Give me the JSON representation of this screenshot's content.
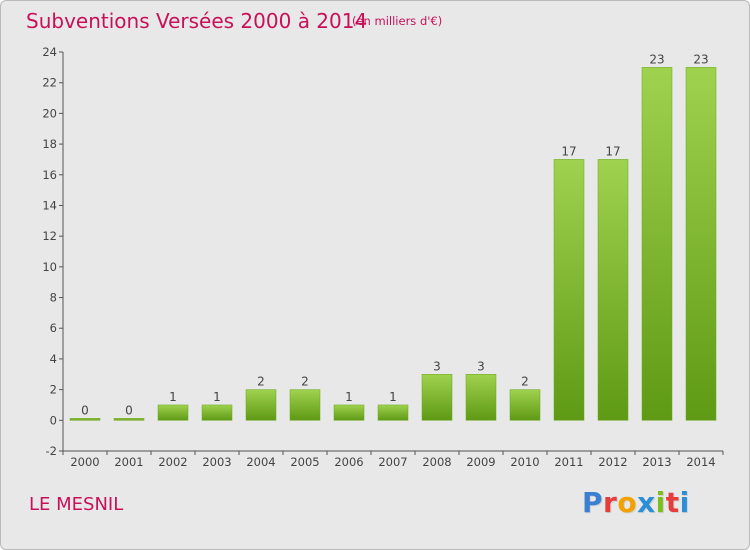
{
  "title": "Subventions Versées 2000 à 2014",
  "subtitle": "(en milliers d'€)",
  "commune": "LE MESNIL",
  "logo": {
    "letters": [
      "P",
      "r",
      "o",
      "x",
      "i",
      "t",
      "i"
    ],
    "colors": [
      "#3b7fd1",
      "#e53c3c",
      "#f2a100",
      "#2a8fd6",
      "#7bbf1e",
      "#e53c3c",
      "#2a8fd6"
    ]
  },
  "colors": {
    "accent": "#c8105a",
    "bar_top": "#9fd24f",
    "bar_bottom": "#5f9a14",
    "background": "#e8e8e8"
  },
  "chart_data": {
    "type": "bar",
    "title": "Subventions Versées 2000 à 2014",
    "subtitle": "(en milliers d'€)",
    "categories": [
      "2000",
      "2001",
      "2002",
      "2003",
      "2004",
      "2005",
      "2006",
      "2007",
      "2008",
      "2009",
      "2010",
      "2011",
      "2012",
      "2013",
      "2014"
    ],
    "values": [
      0,
      0,
      1,
      1,
      2,
      2,
      1,
      1,
      3,
      3,
      2,
      17,
      17,
      23,
      23
    ],
    "ylim": [
      -2,
      24
    ],
    "yticks": [
      -2,
      0,
      2,
      4,
      6,
      8,
      10,
      12,
      14,
      16,
      18,
      20,
      22,
      24
    ],
    "grid": false,
    "legend": "none",
    "data_labels": true
  }
}
